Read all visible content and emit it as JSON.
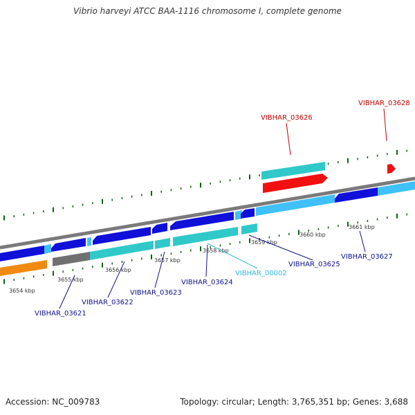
{
  "title": "Vibrio harveyi ATCC BAA-1116 chromosome I, complete genome",
  "footer": {
    "accession": "Accession: NC_009783",
    "topology": "Topology: circular; Length: 3,765,351 bp; Genes: 3,688"
  },
  "colors": {
    "backbone": "#7a7a7a",
    "cds_blue": "#1010d8",
    "cds_lightblue": "#40c0f8",
    "cds_cyan": "#30c8c8",
    "cds_red": "#f01010",
    "cds_orange": "#f08a10",
    "cds_gray": "#707070",
    "tick_green": "#106010",
    "label_blue": "#101090",
    "label_cyan": "#30b8d8",
    "label_red": "#c00000"
  },
  "scale_labels": [
    "3654 kbp",
    "3655 kbp",
    "3656 kbp",
    "3657 kbp",
    "3658 kbp",
    "3659 kbp",
    "3660 kbp",
    "3661 kbp"
  ],
  "gene_labels": [
    "VIBHAR_03621",
    "VIBHAR_03622",
    "VIBHAR_03623",
    "VIBHAR_03624",
    "VIBHAR_00002",
    "VIBHAR_03625",
    "VIBHAR_03627",
    "VIBHAR_03626",
    "VIBHAR_03628"
  ]
}
